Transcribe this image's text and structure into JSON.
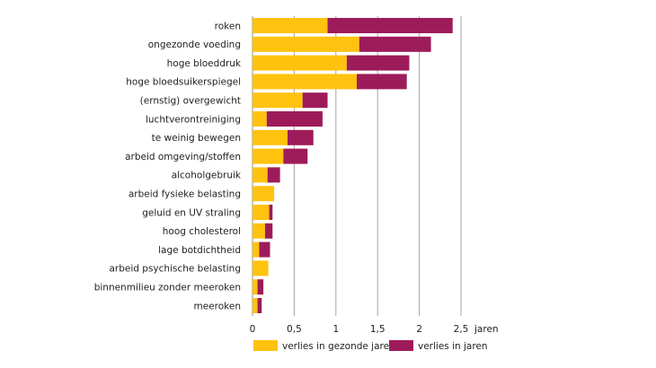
{
  "chart_data": {
    "type": "bar",
    "orientation": "horizontal",
    "stacked": true,
    "categories": [
      "roken",
      "ongezonde voeding",
      "hoge bloeddruk",
      "hoge bloedsuikerspiegel",
      "(ernstig) overgewicht",
      "luchtverontreiniging",
      "te weinig bewegen",
      "arbeid omgeving/stoffen",
      "alcoholgebruik",
      "arbeid fysieke belasting",
      "geluid en UV straling",
      "hoog cholesterol",
      "lage botdichtheid",
      "arbeid psychische belasting",
      "binnenmilieu zonder meeroken",
      "meeroken"
    ],
    "series": [
      {
        "name": "verlies in gezonde jaren",
        "color": "#FFC20E",
        "values": [
          0.9,
          1.28,
          1.13,
          1.25,
          0.6,
          0.17,
          0.42,
          0.37,
          0.18,
          0.26,
          0.2,
          0.15,
          0.08,
          0.19,
          0.06,
          0.06
        ]
      },
      {
        "name": "verlies in jaren",
        "color": "#9E1B5A",
        "values": [
          1.5,
          0.86,
          0.75,
          0.6,
          0.3,
          0.67,
          0.31,
          0.29,
          0.15,
          0.0,
          0.04,
          0.09,
          0.13,
          0.0,
          0.07,
          0.05
        ]
      }
    ],
    "xlim": [
      0,
      2.5
    ],
    "xticks": [
      0,
      0.5,
      1,
      1.5,
      2,
      2.5
    ],
    "xtick_labels": [
      "0",
      "0,5",
      "1",
      "1,5",
      "2",
      "2,5"
    ],
    "xunit": "jaren",
    "grid": "vertical",
    "legend_position": "bottom"
  }
}
